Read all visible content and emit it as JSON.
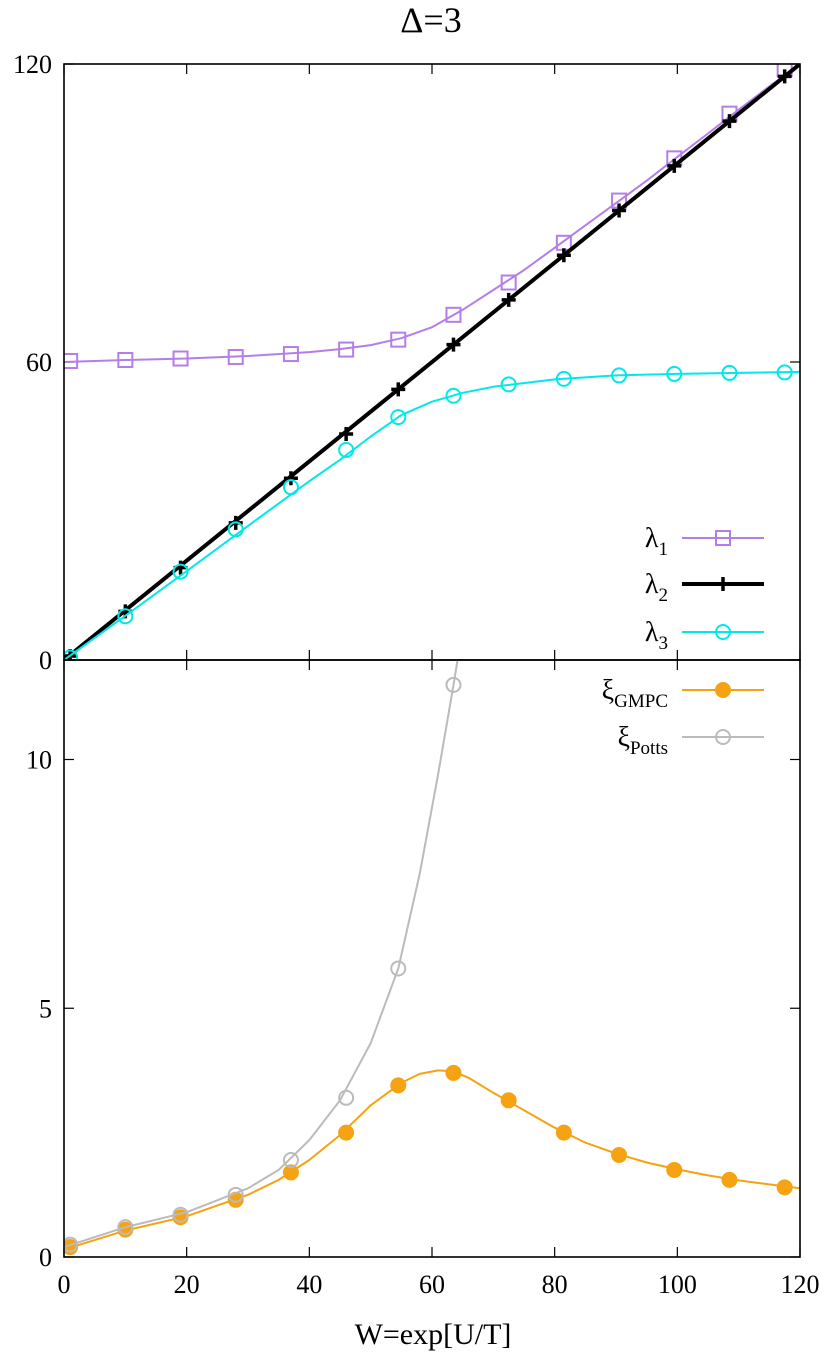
{
  "chart_data": [
    {
      "type": "line",
      "panel": "top",
      "title": "Δ=3",
      "xlim": [
        0,
        120
      ],
      "ylim": [
        0,
        120
      ],
      "yticks": [
        "0",
        "60",
        "120"
      ],
      "grid": false,
      "legend_placement": "bottom-right",
      "series": [
        {
          "name": "λ",
          "sub": "1",
          "color": "#b47ee9",
          "marker": "open-square",
          "markers": [
            [
              1,
              60.2
            ],
            [
              10,
              60.4
            ],
            [
              19,
              60.7
            ],
            [
              28,
              61.0
            ],
            [
              37,
              61.6
            ],
            [
              46,
              62.5
            ],
            [
              54.5,
              64.5
            ],
            [
              63.5,
              69.5
            ],
            [
              72.5,
              76.0
            ],
            [
              81.5,
              84.0
            ],
            [
              90.5,
              92.5
            ],
            [
              99.5,
              101.0
            ],
            [
              108.5,
              110.0
            ],
            [
              117.5,
              119.0
            ]
          ],
          "curve": [
            [
              0,
              60.0
            ],
            [
              10,
              60.4
            ],
            [
              20,
              60.7
            ],
            [
              30,
              61.2
            ],
            [
              40,
              62.0
            ],
            [
              45,
              62.6
            ],
            [
              50,
              63.4
            ],
            [
              55,
              64.8
            ],
            [
              60,
              67.0
            ],
            [
              65,
              70.5
            ],
            [
              70,
              74.5
            ],
            [
              75,
              78.5
            ],
            [
              80,
              83.0
            ],
            [
              85,
              87.5
            ],
            [
              90,
              92.0
            ],
            [
              95,
              96.5
            ],
            [
              100,
              101.3
            ],
            [
              105,
              106.0
            ],
            [
              110,
              110.8
            ],
            [
              115,
              115.5
            ],
            [
              120,
              120.0
            ]
          ]
        },
        {
          "name": "λ",
          "sub": "2",
          "color": "#000000",
          "marker": "plus",
          "markers": [
            [
              1,
              0.8
            ],
            [
              10,
              9.8
            ],
            [
              19,
              18.6
            ],
            [
              28,
              27.6
            ],
            [
              37,
              36.6
            ],
            [
              46,
              45.5
            ],
            [
              54.5,
              54.5
            ],
            [
              63.5,
              63.5
            ],
            [
              72.5,
              72.5
            ],
            [
              81.5,
              81.5
            ],
            [
              90.5,
              90.5
            ],
            [
              99.5,
              99.5
            ],
            [
              108.5,
              108.5
            ],
            [
              117.5,
              117.5
            ]
          ],
          "curve": [
            [
              0,
              0
            ],
            [
              120,
              120
            ]
          ]
        },
        {
          "name": "λ",
          "sub": "3",
          "color": "#00e8e8",
          "marker": "open-circle",
          "markers": [
            [
              1,
              0.5
            ],
            [
              10,
              8.8
            ],
            [
              19,
              17.8
            ],
            [
              28,
              26.3
            ],
            [
              37,
              34.8
            ],
            [
              46,
              42.3
            ],
            [
              54.5,
              48.9
            ],
            [
              63.5,
              53.2
            ],
            [
              72.5,
              55.5
            ],
            [
              81.5,
              56.6
            ],
            [
              90.5,
              57.3
            ],
            [
              99.5,
              57.6
            ],
            [
              108.5,
              57.8
            ],
            [
              117.5,
              57.9
            ]
          ],
          "curve": [
            [
              0,
              0
            ],
            [
              10,
              8.9
            ],
            [
              20,
              17.9
            ],
            [
              30,
              27.0
            ],
            [
              40,
              36.0
            ],
            [
              45,
              40.3
            ],
            [
              50,
              45.0
            ],
            [
              55,
              49.3
            ],
            [
              60,
              52.0
            ],
            [
              65,
              53.8
            ],
            [
              70,
              55.0
            ],
            [
              80,
              56.5
            ],
            [
              90,
              57.3
            ],
            [
              100,
              57.6
            ],
            [
              110,
              57.8
            ],
            [
              120,
              58.0
            ]
          ]
        }
      ]
    },
    {
      "type": "line",
      "panel": "bottom",
      "xlabel": "W=exp[U/T]",
      "xlim": [
        0,
        120
      ],
      "ylim": [
        0,
        12
      ],
      "xticks": [
        "0",
        "20",
        "40",
        "60",
        "80",
        "100",
        "120"
      ],
      "yticks": [
        "0",
        "5",
        "10"
      ],
      "grid": false,
      "legend_placement": "top-right",
      "series": [
        {
          "name": "ξ",
          "sub": "GMPC",
          "color": "#f5a213",
          "marker": "filled-circle",
          "markers": [
            [
              1,
              0.2
            ],
            [
              10,
              0.55
            ],
            [
              19,
              0.8
            ],
            [
              28,
              1.15
            ],
            [
              37,
              1.7
            ],
            [
              46,
              2.5
            ],
            [
              54.5,
              3.45
            ],
            [
              63.5,
              3.7
            ],
            [
              72.5,
              3.15
            ],
            [
              81.5,
              2.5
            ],
            [
              90.5,
              2.05
            ],
            [
              99.5,
              1.75
            ],
            [
              108.5,
              1.55
            ],
            [
              117.5,
              1.4
            ]
          ],
          "curve": [
            [
              0,
              0.15
            ],
            [
              10,
              0.53
            ],
            [
              20,
              0.82
            ],
            [
              30,
              1.25
            ],
            [
              35,
              1.55
            ],
            [
              40,
              1.95
            ],
            [
              45,
              2.45
            ],
            [
              50,
              3.05
            ],
            [
              55,
              3.5
            ],
            [
              58,
              3.68
            ],
            [
              61,
              3.75
            ],
            [
              63.5,
              3.73
            ],
            [
              66,
              3.6
            ],
            [
              70,
              3.3
            ],
            [
              75,
              2.95
            ],
            [
              80,
              2.6
            ],
            [
              85,
              2.3
            ],
            [
              90,
              2.08
            ],
            [
              95,
              1.9
            ],
            [
              100,
              1.76
            ],
            [
              105,
              1.64
            ],
            [
              110,
              1.54
            ],
            [
              115,
              1.46
            ],
            [
              120,
              1.38
            ]
          ]
        },
        {
          "name": "ξ",
          "sub": "Potts",
          "color": "#bbbbbb",
          "marker": "open-circle",
          "markers": [
            [
              1,
              0.25
            ],
            [
              10,
              0.6
            ],
            [
              19,
              0.85
            ],
            [
              28,
              1.25
            ],
            [
              37,
              1.95
            ],
            [
              46,
              3.2
            ],
            [
              54.5,
              5.8
            ],
            [
              63.5,
              11.5
            ]
          ],
          "curve": [
            [
              0,
              0.2
            ],
            [
              10,
              0.6
            ],
            [
              20,
              0.9
            ],
            [
              30,
              1.38
            ],
            [
              35,
              1.75
            ],
            [
              40,
              2.35
            ],
            [
              45,
              3.15
            ],
            [
              50,
              4.3
            ],
            [
              54.5,
              5.8
            ],
            [
              58,
              7.7
            ],
            [
              61,
              9.7
            ],
            [
              63.5,
              11.5
            ],
            [
              65.5,
              13.0
            ]
          ]
        }
      ]
    }
  ]
}
